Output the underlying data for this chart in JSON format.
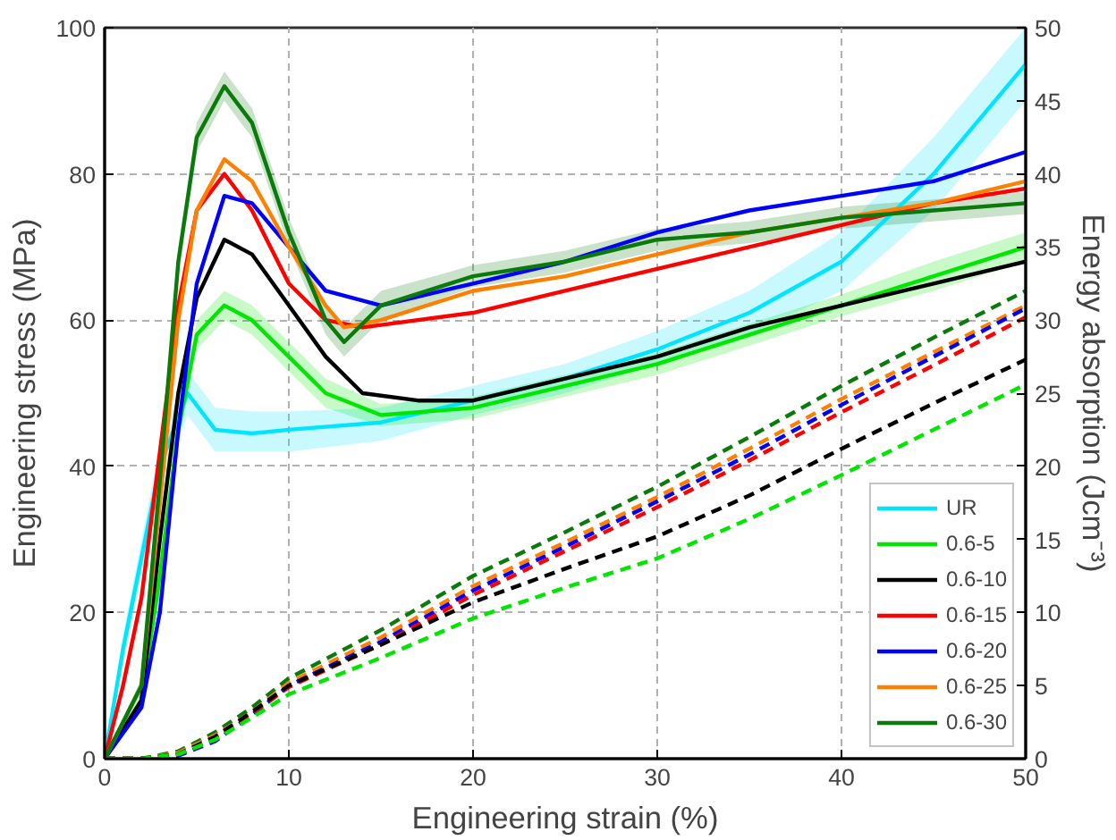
{
  "chart_data": {
    "type": "line",
    "xlabel": "Engineering strain (%)",
    "ylabel": "Engineering stress (MPa)",
    "y2label": "Energy absorption (Jcm⁻³)",
    "xlim": [
      0,
      50
    ],
    "xticks": [
      0,
      10,
      20,
      30,
      40,
      50
    ],
    "ylim": [
      0,
      100
    ],
    "yticks": [
      0,
      20,
      40,
      60,
      80,
      100
    ],
    "y2lim": [
      0,
      50
    ],
    "y2ticks": [
      0,
      5,
      10,
      15,
      20,
      25,
      30,
      35,
      40,
      45,
      50
    ],
    "grid": true,
    "legend": "bottom right",
    "line_style": "solid",
    "marker": "none",
    "series": [
      {
        "name": "UR",
        "color": "#00e5ff",
        "x": [
          0,
          1,
          3,
          4.5,
          6,
          8,
          10,
          15,
          20,
          25,
          30,
          35,
          40,
          45,
          50
        ],
        "values": [
          0,
          15,
          40,
          50,
          45,
          44.5,
          45,
          46,
          49,
          52,
          56,
          61,
          68,
          80,
          95
        ],
        "lower": [
          0,
          13,
          37,
          47,
          42,
          42,
          42,
          43.5,
          47,
          50,
          54,
          58,
          64,
          75,
          90
        ],
        "upper": [
          0,
          17,
          43,
          53,
          48,
          47.5,
          47.5,
          48,
          51,
          54,
          58.5,
          64,
          72,
          85,
          100
        ]
      },
      {
        "name": "0.6-5",
        "color": "#00e600",
        "x": [
          0,
          2,
          3,
          4,
          5,
          6.5,
          8,
          10,
          12,
          15,
          20,
          25,
          30,
          35,
          40,
          45,
          50
        ],
        "values": [
          0,
          8,
          25,
          45,
          58,
          62,
          60,
          55,
          50,
          47,
          48,
          51,
          54,
          58,
          62,
          66,
          70
        ],
        "lower": [
          0,
          7,
          23,
          43,
          56,
          60,
          58,
          53,
          48,
          45.5,
          46.5,
          49.5,
          52.5,
          56.5,
          60.5,
          64,
          68
        ],
        "upper": [
          0,
          9,
          27,
          47,
          60,
          64,
          62,
          57,
          52,
          48.5,
          49.5,
          52.5,
          55.5,
          59.5,
          63.5,
          68,
          72
        ]
      },
      {
        "name": "0.6-10",
        "color": "#000000",
        "x": [
          0,
          2,
          3,
          4,
          5,
          6.5,
          8,
          10,
          12,
          14,
          17,
          20,
          25,
          30,
          35,
          40,
          45,
          50
        ],
        "values": [
          0,
          8,
          30,
          50,
          63,
          71,
          69,
          62,
          55,
          50,
          49,
          49,
          52,
          55,
          59,
          62,
          65,
          68
        ]
      },
      {
        "name": "0.6-15",
        "color": "#ff0000",
        "x": [
          0,
          1,
          2,
          3,
          4,
          5,
          6.5,
          8,
          10,
          12,
          14,
          20,
          25,
          30,
          35,
          40,
          45,
          50
        ],
        "values": [
          0,
          10,
          22,
          42,
          62,
          75,
          80,
          75,
          65,
          60,
          59,
          61,
          64,
          67,
          70,
          73,
          76,
          78
        ]
      },
      {
        "name": "0.6-20",
        "color": "#0000ff",
        "x": [
          0,
          2,
          3,
          4,
          5,
          6.5,
          8,
          10,
          12,
          15,
          20,
          25,
          30,
          35,
          40,
          45,
          50
        ],
        "values": [
          0,
          7,
          20,
          45,
          65,
          77,
          76,
          70,
          64,
          62,
          65,
          68,
          72,
          75,
          77,
          79,
          83
        ]
      },
      {
        "name": "0.6-25",
        "color": "#ff8000",
        "x": [
          0,
          2,
          3,
          4,
          5,
          6.5,
          8,
          10,
          12,
          13,
          15,
          20,
          25,
          30,
          35,
          40,
          45,
          50
        ],
        "values": [
          0,
          10,
          35,
          60,
          75,
          82,
          79,
          70,
          62,
          59,
          60,
          64,
          66,
          69,
          72,
          74,
          76,
          79
        ]
      },
      {
        "name": "0.6-30",
        "color": "#0a7a0a",
        "x": [
          0,
          2,
          3,
          4,
          5,
          6.5,
          8,
          10,
          12,
          13,
          15,
          20,
          25,
          30,
          35,
          40,
          45,
          50
        ],
        "values": [
          0,
          10,
          38,
          68,
          85,
          92,
          87,
          72,
          60,
          57,
          62,
          66,
          68,
          71,
          72,
          74,
          75,
          76
        ],
        "lower": [
          0,
          9,
          36,
          66,
          83,
          90,
          85,
          70,
          58,
          55,
          60,
          64.5,
          66.5,
          69.5,
          70.5,
          72.5,
          73.5,
          74.5
        ],
        "upper": [
          0,
          11,
          40,
          70,
          87,
          94,
          89,
          74,
          62,
          59,
          64,
          67.5,
          69.5,
          72.5,
          73.5,
          75.5,
          76.5,
          77.5
        ]
      },
      {
        "color": "#0a7a0a",
        "axis": "y2",
        "line_style": "dashed",
        "x": [
          0,
          2,
          4,
          6,
          8,
          10,
          15,
          20,
          25,
          30,
          35,
          40,
          45,
          50
        ],
        "values": [
          0,
          0,
          0.5,
          1.8,
          3.5,
          5.5,
          8.8,
          12.5,
          15.5,
          18.6,
          22,
          25.5,
          28.8,
          32
        ]
      },
      {
        "color": "#ff8000",
        "axis": "y2",
        "line_style": "dashed",
        "x": [
          0,
          2,
          4,
          6,
          8,
          10,
          15,
          20,
          25,
          30,
          35,
          40,
          45,
          50
        ],
        "values": [
          0,
          0,
          0.4,
          1.6,
          3.2,
          5.2,
          8.3,
          11.8,
          14.8,
          17.9,
          21.2,
          24.6,
          27.8,
          31
        ]
      },
      {
        "color": "#0000ff",
        "axis": "y2",
        "line_style": "dashed",
        "x": [
          0,
          2,
          4,
          6,
          8,
          10,
          15,
          20,
          25,
          30,
          35,
          40,
          45,
          50
        ],
        "values": [
          0,
          0,
          0.2,
          1.2,
          3,
          5,
          8,
          11.5,
          14.5,
          17.6,
          20.8,
          24.2,
          27.5,
          30.8
        ]
      },
      {
        "color": "#ff0000",
        "axis": "y2",
        "line_style": "dashed",
        "x": [
          0,
          2,
          4,
          6,
          8,
          10,
          15,
          20,
          25,
          30,
          35,
          40,
          45,
          50
        ],
        "values": [
          0,
          0,
          0.3,
          1.4,
          3.1,
          4.9,
          7.8,
          11.2,
          14.2,
          17.2,
          20.4,
          23.7,
          26.9,
          30.2
        ]
      },
      {
        "color": "#000000",
        "axis": "y2",
        "line_style": "dashed",
        "x": [
          0,
          2,
          4,
          6,
          8,
          10,
          15,
          20,
          25,
          30,
          35,
          40,
          45,
          50
        ],
        "values": [
          0,
          0,
          0.3,
          1.5,
          3.2,
          5,
          7.8,
          10.7,
          13,
          15.2,
          18,
          21.2,
          24.3,
          27.3
        ]
      },
      {
        "color": "#00e600",
        "axis": "y2",
        "line_style": "dashed",
        "x": [
          0,
          2,
          4,
          6,
          8,
          10,
          15,
          20,
          25,
          30,
          35,
          40,
          45,
          50
        ],
        "values": [
          0,
          0,
          0.3,
          1.3,
          2.8,
          4.4,
          6.9,
          9.6,
          11.7,
          13.7,
          16.4,
          19.4,
          22.5,
          25.6
        ]
      }
    ]
  }
}
